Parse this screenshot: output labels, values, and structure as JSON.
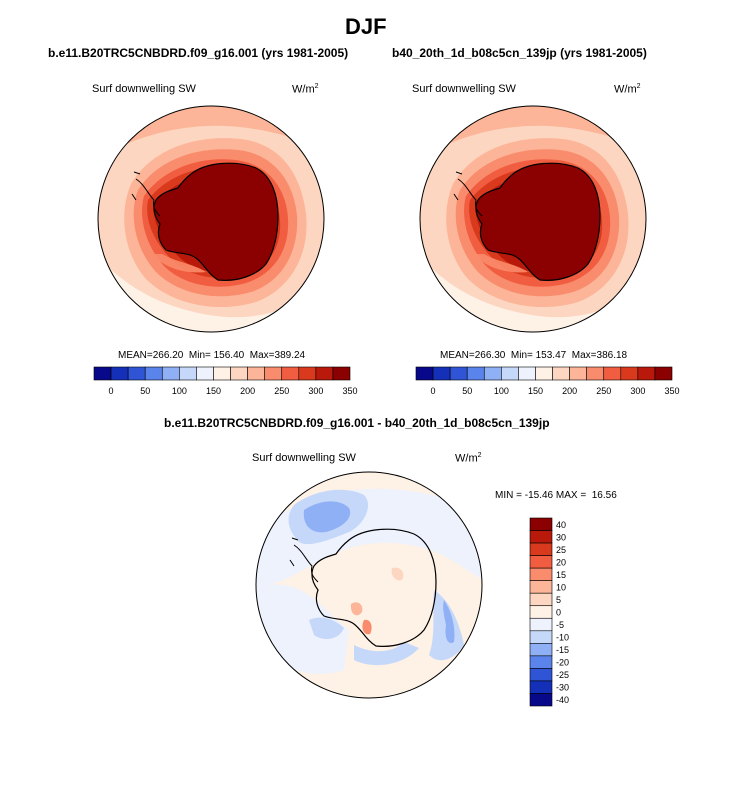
{
  "figure": {
    "season": "DJF"
  },
  "panels": [
    {
      "case": "b.e11.B20TRC5CNBDRD.f09_g16.001 (yrs 1981-2005)",
      "variable": "Surf downwelling SW",
      "units_base": "W/m",
      "units_exp": "2",
      "mean": "266.20",
      "min": "156.40",
      "max": "389.24"
    },
    {
      "case": "b40_20th_1d_b08c5cn_139jp (yrs 1981-2005)",
      "variable": "Surf downwelling SW",
      "units_base": "W/m",
      "units_exp": "2",
      "mean": "266.30",
      "min": "153.47",
      "max": "386.18"
    }
  ],
  "diff_panel": {
    "title": "b.e11.B20TRC5CNBDRD.f09_g16.001 - b40_20th_1d_b08c5cn_139jp",
    "variable": "Surf downwelling SW",
    "units_base": "W/m",
    "units_exp": "2",
    "min_label": "MIN =",
    "min": "-15.46",
    "max_label": "MAX =",
    "max": "16.56"
  },
  "stat_labels": {
    "mean": "MEAN=",
    "min": "Min=",
    "max": "Max="
  },
  "colorbar_abs": {
    "ticks": [
      "0",
      "50",
      "100",
      "150",
      "200",
      "250",
      "300",
      "350"
    ],
    "colors": [
      "#08088a",
      "#1530b8",
      "#2f55d6",
      "#5a83ec",
      "#8fb0f4",
      "#c5d8fa",
      "#edf2fd",
      "#fef1e5",
      "#fdd6c1",
      "#fcb598",
      "#f98c6c",
      "#f15d40",
      "#d93a1d",
      "#b8190a",
      "#8b0000"
    ]
  },
  "colorbar_diff": {
    "labels": [
      "40",
      "30",
      "25",
      "20",
      "15",
      "10",
      "5",
      "0",
      "-5",
      "-10",
      "-15",
      "-20",
      "-25",
      "-30",
      "-40"
    ],
    "colors": [
      "#8b0000",
      "#b8190a",
      "#d93a1d",
      "#f15d40",
      "#f98c6c",
      "#fcb598",
      "#fdd6c1",
      "#fef1e5",
      "#edf2fd",
      "#c5d8fa",
      "#8fb0f4",
      "#5a83ec",
      "#2f55d6",
      "#1530b8",
      "#08088a"
    ]
  }
}
